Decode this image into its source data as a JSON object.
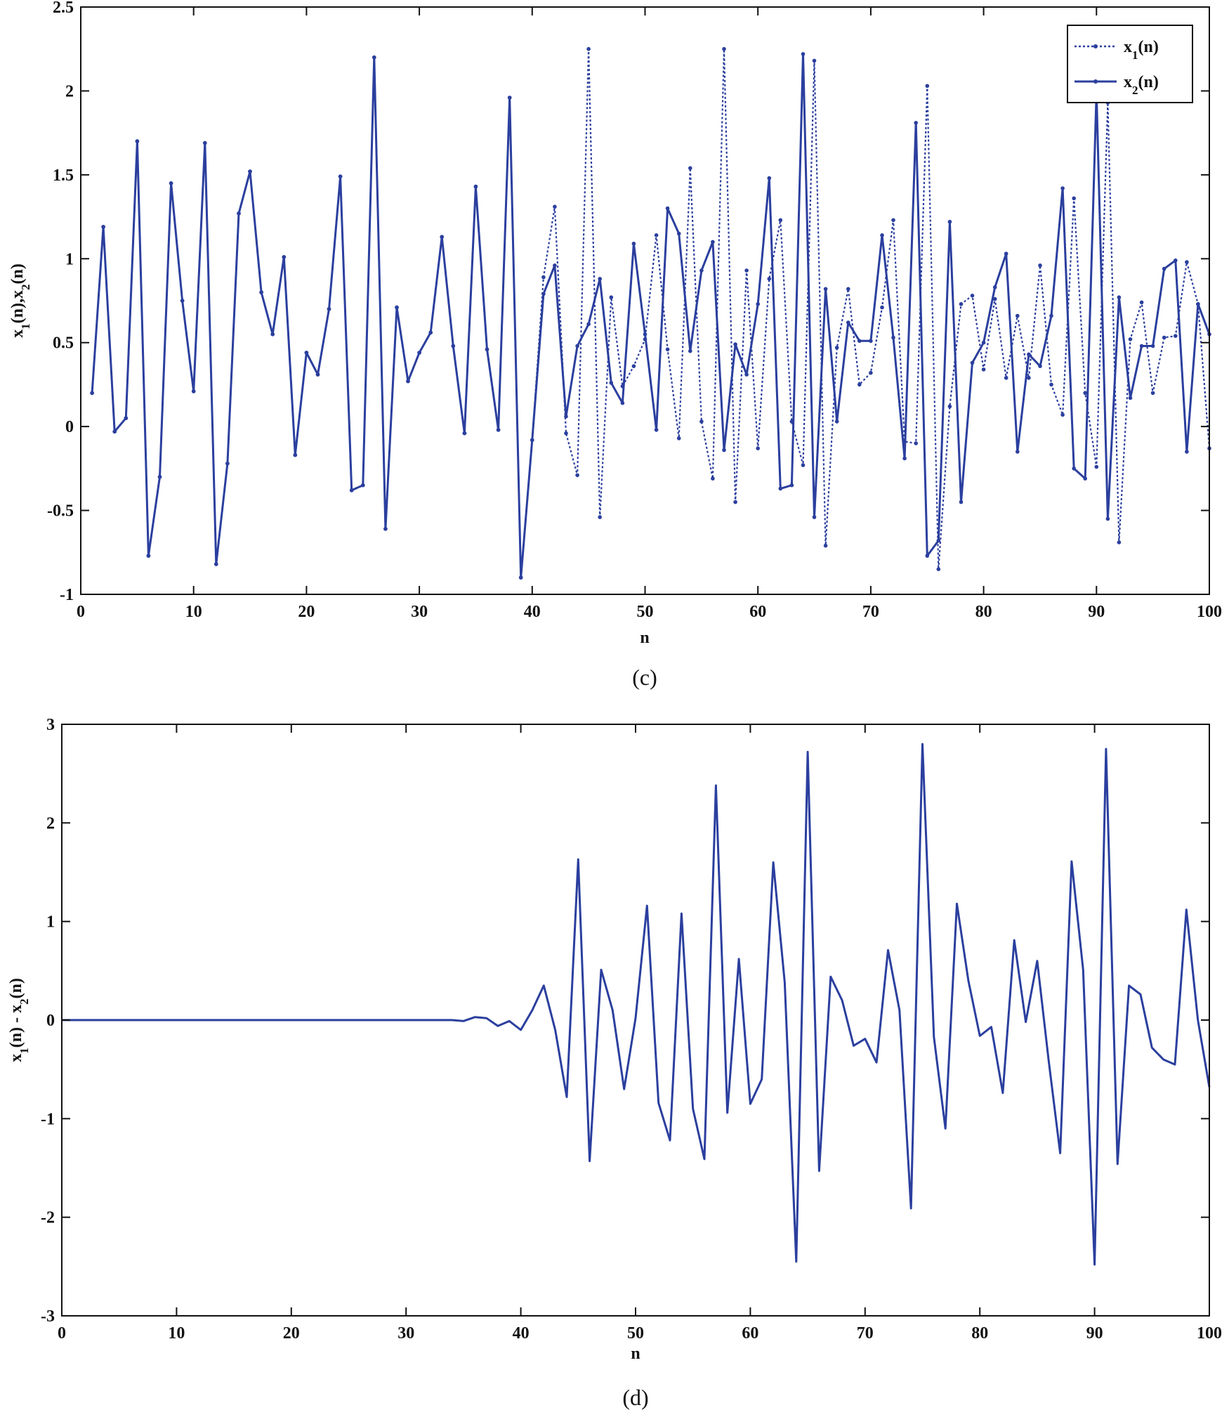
{
  "chart_data": [
    {
      "type": "line",
      "caption": "(c)",
      "xlabel": "n",
      "ylabel": "x1(n),x2(n)",
      "xlim": [
        0,
        100
      ],
      "ylim": [
        -1,
        2.5
      ],
      "xticks": [
        0,
        10,
        20,
        30,
        40,
        50,
        60,
        70,
        80,
        90,
        100
      ],
      "yticks": [
        -1,
        -0.5,
        0,
        0.5,
        1,
        1.5,
        2,
        2.5
      ],
      "xtick_labels": [
        "0",
        "10",
        "20",
        "30",
        "40",
        "50",
        "60",
        "70",
        "80",
        "90",
        "100"
      ],
      "ytick_labels": [
        "-1",
        "-0.5",
        "0",
        "0.5",
        "1",
        "1.5",
        "2",
        "2.5"
      ],
      "legend": "top-right",
      "color": "#2b3f9e",
      "x": [
        1,
        2,
        3,
        4,
        5,
        6,
        7,
        8,
        9,
        10,
        11,
        12,
        13,
        14,
        15,
        16,
        17,
        18,
        19,
        20,
        21,
        22,
        23,
        24,
        25,
        26,
        27,
        28,
        29,
        30,
        31,
        32,
        33,
        34,
        35,
        36,
        37,
        38,
        39,
        40,
        41,
        42,
        43,
        44,
        45,
        46,
        47,
        48,
        49,
        50,
        51,
        52,
        53,
        54,
        55,
        56,
        57,
        58,
        59,
        60,
        61,
        62,
        63,
        64,
        65,
        66,
        67,
        68,
        69,
        70,
        71,
        72,
        73,
        74,
        75,
        76,
        77,
        78,
        79,
        80,
        81,
        82,
        83,
        84,
        85,
        86,
        87,
        88,
        89,
        90,
        91,
        92,
        93,
        94,
        95,
        96,
        97,
        98,
        99,
        100
      ],
      "series": [
        {
          "name": "x1(n)",
          "style": "dotted",
          "values": [
            0.2,
            1.19,
            -0.03,
            0.05,
            1.7,
            -0.77,
            -0.3,
            1.45,
            0.75,
            0.21,
            1.69,
            -0.82,
            -0.22,
            1.27,
            1.52,
            0.8,
            0.55,
            1.01,
            -0.17,
            0.44,
            0.31,
            0.7,
            1.49,
            -0.38,
            -0.35,
            2.2,
            -0.61,
            0.71,
            0.27,
            0.44,
            0.56,
            1.13,
            0.48,
            -0.04,
            1.43,
            0.46,
            -0.02,
            1.96,
            -0.9,
            -0.08,
            0.89,
            1.31,
            -0.04,
            -0.29,
            2.25,
            -0.54,
            0.77,
            0.24,
            0.36,
            0.52,
            1.14,
            0.46,
            -0.07,
            1.54,
            0.03,
            -0.31,
            2.25,
            -0.45,
            0.93,
            -0.13,
            0.88,
            1.23,
            0.03,
            -0.23,
            2.18,
            -0.71,
            0.47,
            0.82,
            0.25,
            0.32,
            0.71,
            1.23,
            -0.09,
            -0.1,
            2.03,
            -0.85,
            0.12,
            0.73,
            0.78,
            0.34,
            0.76,
            0.29,
            0.66,
            0.29,
            0.96,
            0.25,
            0.07,
            1.36,
            0.2,
            -0.24,
            1.93,
            -0.69,
            0.52,
            0.74,
            0.2,
            0.53,
            0.54,
            0.98,
            0.73,
            -0.13
          ]
        },
        {
          "name": "x2(n)",
          "style": "solid",
          "values": [
            0.2,
            1.19,
            -0.03,
            0.05,
            1.7,
            -0.77,
            -0.3,
            1.45,
            0.75,
            0.21,
            1.69,
            -0.82,
            -0.22,
            1.27,
            1.52,
            0.8,
            0.55,
            1.01,
            -0.17,
            0.44,
            0.31,
            0.7,
            1.49,
            -0.38,
            -0.35,
            2.2,
            -0.61,
            0.71,
            0.27,
            0.44,
            0.56,
            1.13,
            0.48,
            -0.04,
            1.43,
            0.46,
            -0.02,
            1.96,
            -0.9,
            -0.08,
            0.79,
            0.96,
            0.06,
            0.48,
            0.61,
            0.88,
            0.26,
            0.14,
            1.09,
            0.55,
            -0.02,
            1.3,
            1.15,
            0.45,
            0.93,
            1.1,
            -0.14,
            0.49,
            0.31,
            0.73,
            1.48,
            -0.37,
            -0.35,
            2.22,
            -0.54,
            0.82,
            0.03,
            0.62,
            0.51,
            0.51,
            1.14,
            0.53,
            -0.19,
            1.81,
            -0.77,
            -0.68,
            1.22,
            -0.45,
            0.38,
            0.5,
            0.83,
            1.03,
            -0.15,
            0.43,
            0.36,
            0.66,
            1.42,
            -0.25,
            -0.31,
            1.99,
            -0.55,
            0.77,
            0.17,
            0.48,
            0.48,
            0.94,
            0.99,
            -0.15,
            0.73,
            0.55
          ]
        }
      ]
    },
    {
      "type": "line",
      "caption": "(d)",
      "xlabel": "n",
      "ylabel": "x1(n) - x2(n)",
      "xlim": [
        0,
        100
      ],
      "ylim": [
        -3,
        3
      ],
      "xticks": [
        0,
        10,
        20,
        30,
        40,
        50,
        60,
        70,
        80,
        90,
        100
      ],
      "yticks": [
        -3,
        -2,
        -1,
        0,
        1,
        2,
        3
      ],
      "xtick_labels": [
        "0",
        "10",
        "20",
        "30",
        "40",
        "50",
        "60",
        "70",
        "80",
        "90",
        "100"
      ],
      "ytick_labels": [
        "-3",
        "-2",
        "-1",
        "0",
        "1",
        "2",
        "3"
      ],
      "color": "#2b3f9e",
      "x": [
        0,
        1,
        2,
        3,
        4,
        5,
        6,
        7,
        8,
        9,
        10,
        11,
        12,
        13,
        14,
        15,
        16,
        17,
        18,
        19,
        20,
        21,
        22,
        23,
        24,
        25,
        26,
        27,
        28,
        29,
        30,
        31,
        32,
        33,
        34,
        35,
        36,
        37,
        38,
        39,
        40,
        41,
        42,
        43,
        44,
        45,
        46,
        47,
        48,
        49,
        50,
        51,
        52,
        53,
        54,
        55,
        56,
        57,
        58,
        59,
        60,
        61,
        62,
        63,
        64,
        65,
        66,
        67,
        68,
        69,
        70,
        71,
        72,
        73,
        74,
        75,
        76,
        77,
        78,
        79,
        80,
        81,
        82,
        83,
        84,
        85,
        86,
        87,
        88,
        89,
        90,
        91,
        92,
        93,
        94,
        95,
        96,
        97,
        98,
        99,
        100
      ],
      "series": [
        {
          "name": "x1(n) - x2(n)",
          "style": "solid",
          "values": [
            0,
            0,
            0,
            0,
            0,
            0,
            0,
            0,
            0,
            0,
            0,
            0,
            0,
            0,
            0,
            0,
            0,
            0,
            0,
            0,
            0,
            0,
            0,
            0,
            0,
            0,
            0,
            0,
            0,
            0,
            0,
            0,
            0,
            0,
            0,
            -0.01,
            0.03,
            0.02,
            -0.06,
            -0.01,
            -0.1,
            0.1,
            0.35,
            -0.1,
            -0.78,
            1.63,
            -1.43,
            0.51,
            0.1,
            -0.7,
            0.02,
            1.16,
            -0.84,
            -1.22,
            1.08,
            -0.9,
            -1.41,
            2.38,
            -0.94,
            0.62,
            -0.85,
            -0.6,
            1.6,
            0.38,
            -2.45,
            2.72,
            -1.53,
            0.44,
            0.2,
            -0.26,
            -0.19,
            -0.43,
            0.71,
            0.1,
            -1.91,
            2.8,
            -0.17,
            -1.1,
            1.18,
            0.4,
            -0.16,
            -0.07,
            -0.74,
            0.81,
            -0.02,
            0.6,
            -0.41,
            -1.35,
            1.61,
            0.51,
            -2.48,
            2.75,
            -1.46,
            0.35,
            0.26,
            -0.28,
            -0.4,
            -0.45,
            1.12,
            0,
            -0.68
          ]
        }
      ]
    }
  ]
}
